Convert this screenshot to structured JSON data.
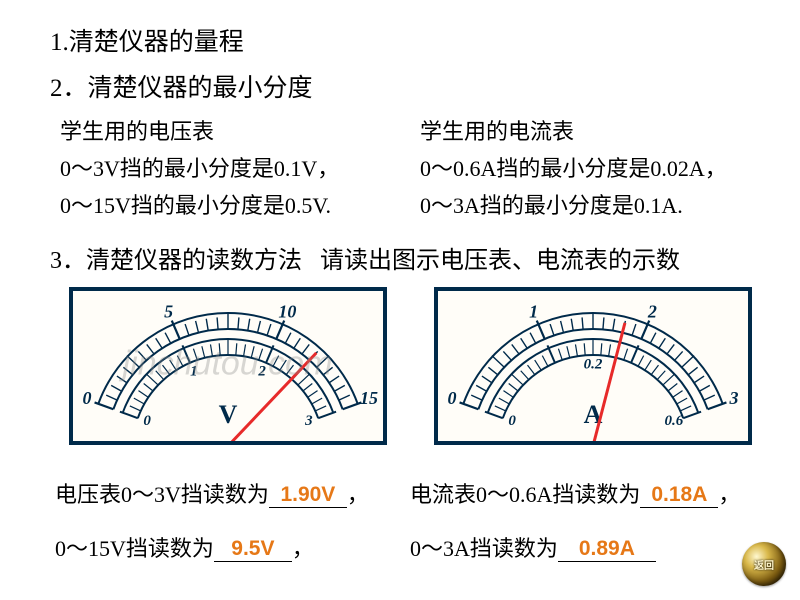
{
  "t1": "1.清楚仪器的量程",
  "t2": "2．清楚仪器的最小分度",
  "volt_title": "学生用的电压表",
  "volt_l1": "0～3V挡的最小分度是0.1V，",
  "volt_l2": "0～15V挡的最小分度是0.5V.",
  "amp_title": "学生用的电流表",
  "amp_l1": "0～0.6A挡的最小分度是0.02A，",
  "amp_l2": "0～3A挡的最小分度是0.1A.",
  "t3a": "3．清楚仪器的读数方法",
  "t3b": "请读出图示电压表、电流表的示数",
  "watermark": "jinchutou.com",
  "r1a_pre": "电压表0～3V挡读数为",
  "r1a_val": "1.90V",
  "r1b_pre": "电流表0～0.6A挡读数为",
  "r1b_val": "0.18A",
  "r2a_pre": "0～15V挡读数为",
  "r2a_val": "9.5V",
  "r2b_pre": "0～3A挡读数为",
  "r2b_val": "0.89A",
  "comma": "，",
  "back": "返回",
  "voltmeter": {
    "outer_labels": [
      "0",
      "5",
      "10",
      "15"
    ],
    "inner_labels": [
      "0",
      "1",
      "2",
      "3"
    ],
    "unit": "V",
    "needle_angle_deg": 112,
    "colors": {
      "frame": "#002a4a",
      "ticks": "#002a4a",
      "needle": "#e72a2a"
    }
  },
  "ammeter": {
    "outer_labels": [
      "0",
      "1",
      "2",
      "3"
    ],
    "inner_labels": [
      "0",
      "0.2",
      "0.6"
    ],
    "unit": "A",
    "needle_angle_deg": 84,
    "colors": {
      "frame": "#002a4a",
      "ticks": "#002a4a",
      "needle": "#e72a2a"
    }
  }
}
